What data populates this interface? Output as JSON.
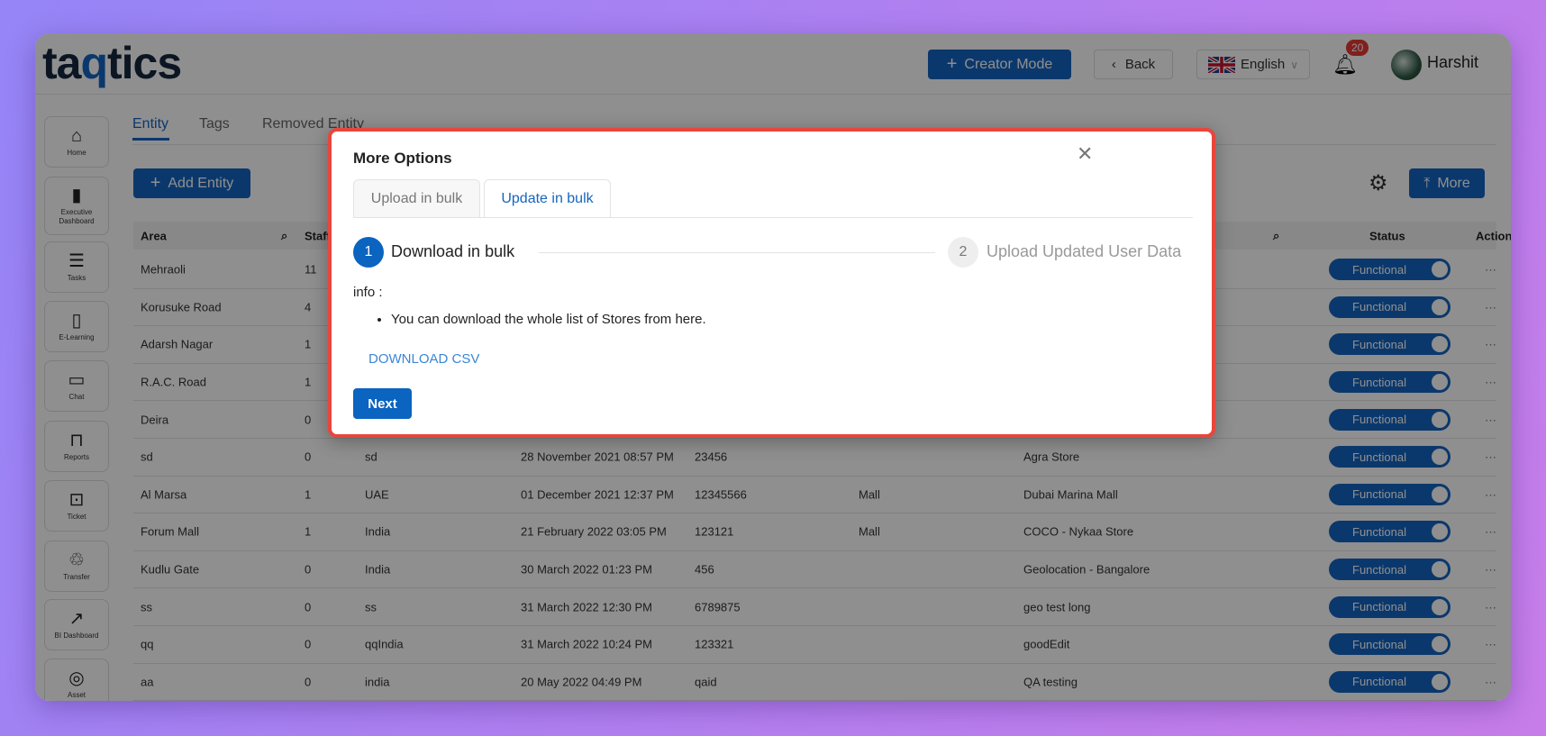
{
  "header": {
    "logo": "taqtics",
    "creator_mode": "Creator Mode",
    "back": "Back",
    "language": "English",
    "notifications": "20",
    "user": "Harshit"
  },
  "sidebar": {
    "items": [
      {
        "label": "Home",
        "icon": "home-icon"
      },
      {
        "label": "Executive Dashboard",
        "icon": "bar-chart-icon"
      },
      {
        "label": "Tasks",
        "icon": "checklist-icon"
      },
      {
        "label": "E-Learning",
        "icon": "document-icon"
      },
      {
        "label": "Chat",
        "icon": "chat-icon"
      },
      {
        "label": "Reports",
        "icon": "presentation-icon"
      },
      {
        "label": "Ticket",
        "icon": "ticket-icon"
      },
      {
        "label": "Transfer",
        "icon": "transfer-icon"
      },
      {
        "label": "BI Dashboard",
        "icon": "analytics-icon"
      },
      {
        "label": "Asset",
        "icon": "asset-icon"
      }
    ]
  },
  "tabs": [
    "Entity",
    "Tags",
    "Removed Entity"
  ],
  "toolbar": {
    "add_entity": "Add Entity",
    "more": "More"
  },
  "table": {
    "headers": {
      "area": "Area",
      "staff": "Staff",
      "status": "Status",
      "action": "Action"
    },
    "rows": [
      [
        "Mehraoli",
        "11",
        "",
        "",
        "",
        "",
        "",
        "Functional"
      ],
      [
        "Korusuke Road",
        "4",
        "",
        "",
        "",
        "",
        "",
        "Functional"
      ],
      [
        "Adarsh Nagar",
        "1",
        "",
        "",
        "",
        "",
        "",
        "Functional"
      ],
      [
        "R.A.C. Road",
        "1",
        "",
        "",
        "",
        "",
        "",
        "Functional"
      ],
      [
        "Deira",
        "0",
        "",
        "",
        "",
        "",
        "",
        "Functional"
      ],
      [
        "sd",
        "0",
        "sd",
        "28 November 2021 08:57 PM",
        "23456",
        "",
        "Agra Store",
        "Functional"
      ],
      [
        "Al Marsa",
        "1",
        "UAE",
        "01 December 2021 12:37 PM",
        "12345566",
        "Mall",
        "Dubai Marina Mall",
        "Functional"
      ],
      [
        "Forum Mall",
        "1",
        "India",
        "21 February 2022 03:05 PM",
        "123121",
        "Mall",
        "COCO - Nykaa Store",
        "Functional"
      ],
      [
        "Kudlu Gate",
        "0",
        "India",
        "30 March 2022 01:23 PM",
        "456",
        "",
        "Geolocation - Bangalore",
        "Functional"
      ],
      [
        "ss",
        "0",
        "ss",
        "31 March 2022 12:30 PM",
        "6789875",
        "",
        "geo test long",
        "Functional"
      ],
      [
        "qq",
        "0",
        "qqIndia",
        "31 March 2022 10:24 PM",
        "123321",
        "",
        "goodEdit",
        "Functional"
      ],
      [
        "aa",
        "0",
        "india",
        "20 May 2022 04:49 PM",
        "qaid",
        "",
        "QA testing",
        "Functional"
      ]
    ],
    "action_label": "···"
  },
  "modal": {
    "title": "More Options",
    "tabs": [
      "Upload in bulk",
      "Update in bulk"
    ],
    "active_tab": 1,
    "steps": [
      {
        "num": "1",
        "label": "Download in bulk"
      },
      {
        "num": "2",
        "label": "Upload Updated User Data"
      }
    ],
    "info_label": "info :",
    "info_items": [
      "You can download the whole list of Stores from here."
    ],
    "download_link": "DOWNLOAD CSV",
    "next": "Next"
  },
  "colors": {
    "primary": "#1565c0",
    "highlight_border": "#e8463c",
    "badge": "#e53935"
  }
}
